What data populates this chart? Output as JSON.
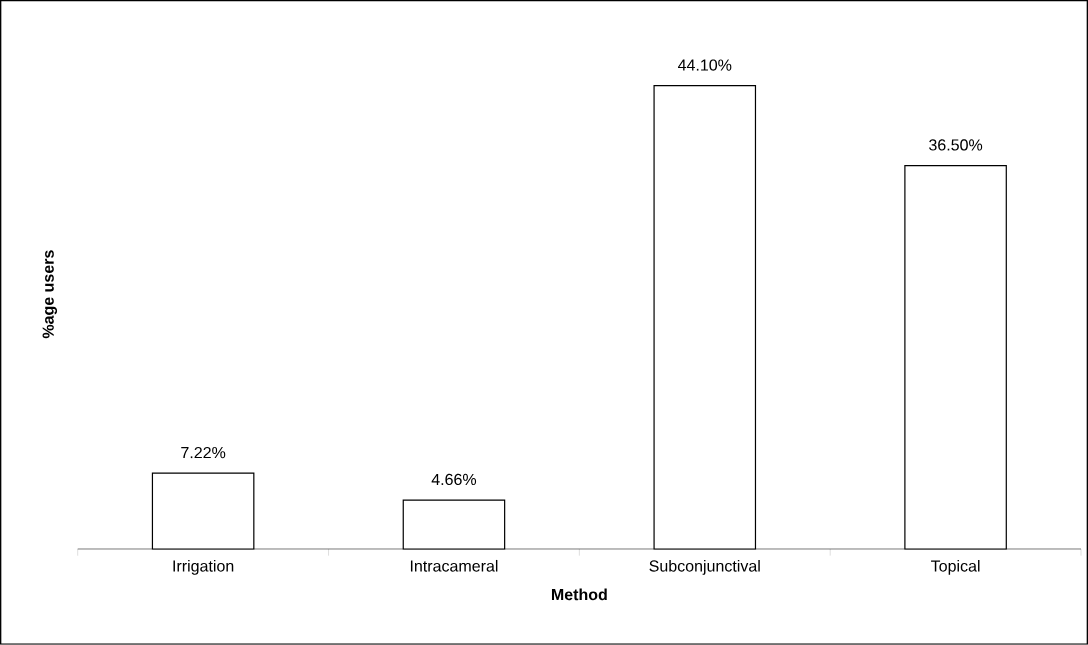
{
  "chart_data": {
    "type": "bar",
    "xlabel": "Method",
    "ylabel": "%age users",
    "categories": [
      "Irrigation",
      "Intracameral",
      "Subconjunctival",
      "Topical"
    ],
    "values": [
      7.22,
      4.66,
      44.1,
      36.5
    ],
    "value_labels": [
      "7.22%",
      "4.66%",
      "44.10%",
      "36.50%"
    ],
    "color": "#ffffff"
  }
}
